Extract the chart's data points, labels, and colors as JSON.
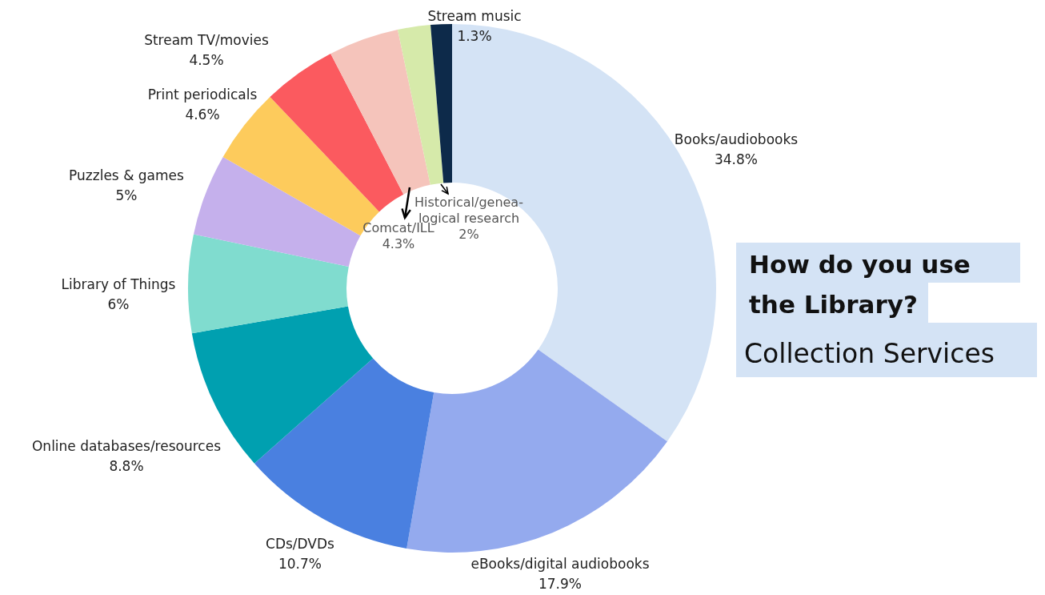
{
  "chart_data": {
    "type": "donut",
    "title": "How do you use\nthe Library?",
    "subtitle": "Collection Services",
    "categories": [
      "Books/audiobooks",
      "eBooks/digital audiobooks",
      "CDs/DVDs",
      "Online databases/resources",
      "Library of Things",
      "Puzzles & games",
      "Print periodicals",
      "Stream TV/movies",
      "Comcat/ILL",
      "Historical/genea-\nlogical research",
      "Stream music"
    ],
    "values": [
      34.8,
      17.9,
      10.7,
      8.8,
      6,
      5,
      4.6,
      4.5,
      4.3,
      2,
      1.3
    ],
    "value_labels": [
      "34.8%",
      "17.9%",
      "10.7%",
      "8.8%",
      "6%",
      "5%",
      "4.6%",
      "4.5%",
      "4.3%",
      "2%",
      "1.3%"
    ],
    "colors": [
      "#d4e3f5",
      "#94aaee",
      "#4a80e0",
      "#00a0b0",
      "#80dccf",
      "#c5b0ec",
      "#fdcb5c",
      "#fb5a5f",
      "#f5c4bb",
      "#d6eaaa",
      "#0d2a4a"
    ]
  }
}
